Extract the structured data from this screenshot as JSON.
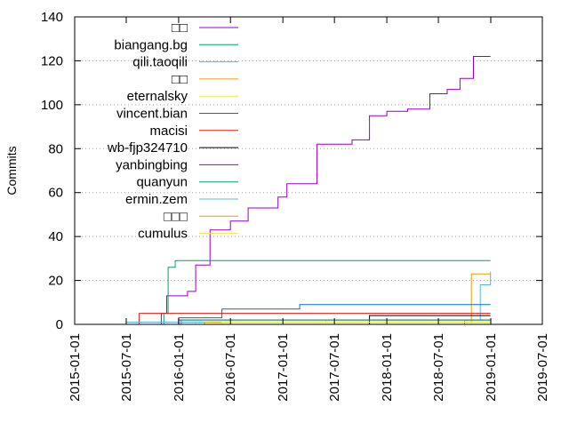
{
  "chart_data": {
    "type": "line",
    "title": "",
    "xlabel": "",
    "ylabel": "Commits",
    "x_ticks": [
      "2015-01-01",
      "2015-07-01",
      "2016-01-01",
      "2016-07-01",
      "2017-01-01",
      "2017-07-01",
      "2018-01-01",
      "2018-07-01",
      "2019-01-01",
      "2019-07-01"
    ],
    "y_ticks": [
      0,
      20,
      40,
      60,
      80,
      100,
      120,
      140
    ],
    "xlim": [
      "2015-01-01",
      "2019-07-01"
    ],
    "ylim": [
      0,
      140
    ],
    "grid": "y-dotted",
    "legend_position": "top-left",
    "series": [
      {
        "name": "□□",
        "color": "#9400d3",
        "points": [
          [
            "2015-08-01",
            0
          ],
          [
            "2015-11-01",
            5
          ],
          [
            "2015-11-20",
            13
          ],
          [
            "2016-02-01",
            15
          ],
          [
            "2016-03-01",
            27
          ],
          [
            "2016-04-20",
            43
          ],
          [
            "2016-07-01",
            47
          ],
          [
            "2016-09-01",
            53
          ],
          [
            "2016-12-15",
            58
          ],
          [
            "2017-01-15",
            64
          ],
          [
            "2017-05-01",
            82
          ],
          [
            "2017-09-01",
            84
          ],
          [
            "2017-11-01",
            95
          ],
          [
            "2018-01-01",
            97
          ],
          [
            "2018-03-15",
            98
          ],
          [
            "2018-06-01",
            105
          ],
          [
            "2018-08-01",
            107
          ],
          [
            "2018-09-15",
            112
          ],
          [
            "2018-11-01",
            122
          ],
          [
            "2018-12-31",
            122
          ]
        ]
      },
      {
        "name": "biangang.bg",
        "color": "#009e73",
        "points": [
          [
            "2015-08-01",
            0
          ],
          [
            "2015-11-10",
            5
          ],
          [
            "2015-11-25",
            26
          ],
          [
            "2015-12-20",
            29
          ],
          [
            "2018-12-31",
            29
          ]
        ]
      },
      {
        "name": "qili.taoqili",
        "color": "#56b4e9",
        "points": [
          [
            "2015-08-01",
            0
          ],
          [
            "2018-10-01",
            2
          ],
          [
            "2018-11-25",
            18
          ],
          [
            "2018-12-31",
            24
          ]
        ]
      },
      {
        "name": "□□",
        "color": "#e69f00",
        "points": [
          [
            "2015-08-01",
            0
          ],
          [
            "2018-10-01",
            1
          ],
          [
            "2018-10-25",
            23
          ],
          [
            "2018-12-31",
            23
          ]
        ]
      },
      {
        "name": "eternalsky",
        "color": "#f0e442",
        "points": [
          [
            "2015-08-01",
            0
          ],
          [
            "2016-03-01",
            1
          ],
          [
            "2017-06-01",
            2
          ],
          [
            "2018-12-31",
            2
          ]
        ]
      },
      {
        "name": "vincent.bian",
        "color": "#0072b2",
        "points": [
          [
            "2015-08-01",
            0
          ],
          [
            "2016-01-01",
            3
          ],
          [
            "2016-06-01",
            7
          ],
          [
            "2017-03-01",
            9
          ],
          [
            "2018-12-31",
            9
          ]
        ]
      },
      {
        "name": "macisi",
        "color": "#e51e10",
        "points": [
          [
            "2015-07-01",
            0
          ],
          [
            "2015-08-15",
            5
          ],
          [
            "2018-12-31",
            5
          ]
        ]
      },
      {
        "name": "wb-fjp324710",
        "color": "#000000",
        "points": [
          [
            "2015-08-01",
            0
          ],
          [
            "2017-11-01",
            4
          ],
          [
            "2018-12-31",
            4
          ]
        ]
      },
      {
        "name": "yanbingbing",
        "color": "#9400d3",
        "points": [
          [
            "2015-08-01",
            0
          ],
          [
            "2016-01-01",
            2
          ],
          [
            "2018-12-31",
            2
          ]
        ]
      },
      {
        "name": "quanyun",
        "color": "#009e73",
        "points": [
          [
            "2015-08-01",
            0
          ],
          [
            "2016-01-10",
            2
          ],
          [
            "2018-12-31",
            2
          ]
        ]
      },
      {
        "name": "ermin.zem",
        "color": "#56b4e9",
        "points": [
          [
            "2015-06-15",
            0
          ],
          [
            "2015-07-01",
            1
          ],
          [
            "2018-12-31",
            1
          ]
        ]
      },
      {
        "name": "□□□",
        "color": "#e69f00",
        "points": [
          [
            "2015-08-01",
            0
          ],
          [
            "2016-04-01",
            1
          ],
          [
            "2018-12-31",
            1
          ]
        ]
      },
      {
        "name": "cumulus",
        "color": "#f0e442",
        "points": [
          [
            "2015-08-01",
            0
          ],
          [
            "2016-06-01",
            1
          ],
          [
            "2018-12-31",
            1
          ]
        ]
      }
    ]
  }
}
